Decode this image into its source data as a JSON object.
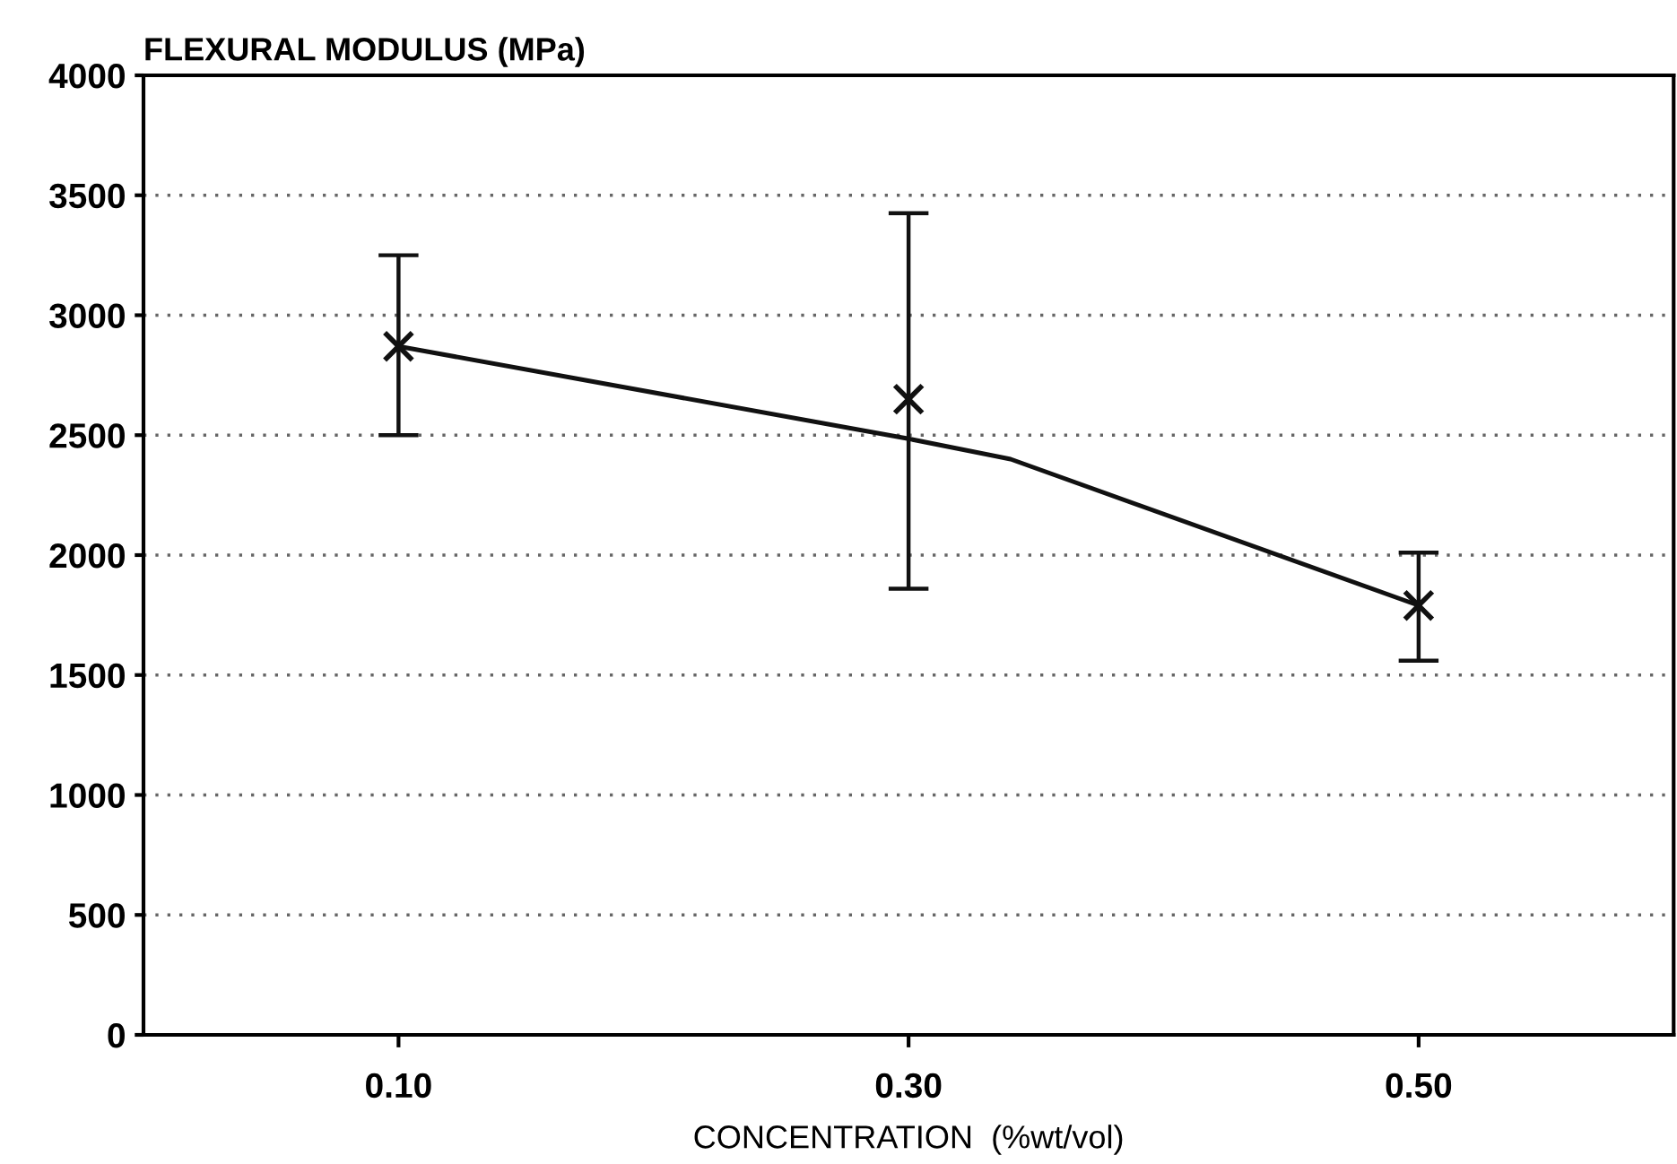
{
  "chart_data": {
    "type": "scatter",
    "title": "FLEXURAL MODULUS (MPa)",
    "xlabel": "CONCENTRATION  (%wt/vol)",
    "xlim": [
      0,
      0.6
    ],
    "xticks": [
      {
        "value": 0.1,
        "label": "0.10"
      },
      {
        "value": 0.3,
        "label": "0.30"
      },
      {
        "value": 0.5,
        "label": "0.50"
      }
    ],
    "ylim": [
      0,
      4000
    ],
    "yticks": [
      0,
      500,
      1000,
      1500,
      2000,
      2500,
      3000,
      3500,
      4000
    ],
    "grid": "y",
    "series": [
      {
        "type": "scatter",
        "color": "#111111",
        "marker": "cross",
        "x": [
          0.1,
          0.3,
          0.5
        ],
        "values": [
          2870,
          2650,
          1790
        ],
        "errors": [
          [
            2500,
            3250
          ],
          [
            1860,
            3425
          ],
          [
            1560,
            2010
          ]
        ]
      },
      {
        "type": "line",
        "color": "#111111",
        "marker": "none",
        "line_style": "solid",
        "x": [
          0.1,
          0.3,
          0.34,
          0.5
        ],
        "values": [
          2870,
          2485,
          2400,
          1790
        ]
      }
    ]
  }
}
